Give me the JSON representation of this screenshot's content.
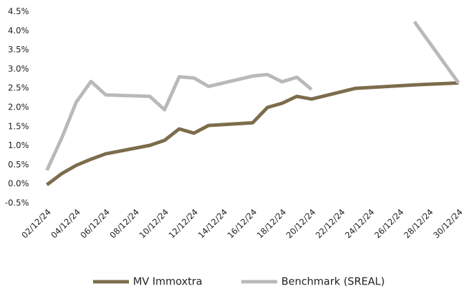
{
  "chart_data": {
    "type": "line",
    "x": [
      "02/12/24",
      "03/12/24",
      "04/12/24",
      "05/12/24",
      "06/12/24",
      "09/12/24",
      "10/12/24",
      "11/12/24",
      "12/12/24",
      "13/12/24",
      "16/12/24",
      "17/12/24",
      "18/12/24",
      "19/12/24",
      "20/12/24",
      "23/12/24",
      "27/12/24",
      "30/12/24"
    ],
    "series": [
      {
        "name": "MV Immoxtra",
        "color": "#7d6c4c",
        "values": [
          -0.02,
          0.27,
          0.49,
          0.65,
          0.79,
          1.01,
          1.14,
          1.44,
          1.33,
          1.53,
          1.6,
          2.0,
          2.11,
          2.29,
          2.22,
          2.5,
          2.59,
          2.64
        ]
      },
      {
        "name": "Benchmark (SREAL)",
        "color": "#b9b9b9",
        "values": [
          0.36,
          1.19,
          2.14,
          2.68,
          2.33,
          2.29,
          1.94,
          2.8,
          2.77,
          2.55,
          2.82,
          2.86,
          2.67,
          2.79,
          2.47,
          null,
          4.24,
          2.64
        ]
      }
    ],
    "xticks": [
      "02/12/24",
      "04/12/24",
      "06/12/24",
      "08/12/24",
      "10/12/24",
      "12/12/24",
      "14/12/24",
      "16/12/24",
      "18/12/24",
      "20/12/24",
      "22/12/24",
      "24/12/24",
      "26/12/24",
      "28/12/24",
      "30/12/24"
    ],
    "ylim": [
      -0.5,
      4.5
    ],
    "yticks": [
      {
        "value": -0.5,
        "label": "-0.5%"
      },
      {
        "value": 0,
        "label": "0.0%"
      },
      {
        "value": 0.5,
        "label": "0.5%"
      },
      {
        "value": 1,
        "label": "1.0%"
      },
      {
        "value": 1.5,
        "label": "1.5%"
      },
      {
        "value": 2,
        "label": "2.0%"
      },
      {
        "value": 2.5,
        "label": "2.5%"
      },
      {
        "value": 3,
        "label": "3.0%"
      },
      {
        "value": 3.5,
        "label": "3.5%"
      },
      {
        "value": 4,
        "label": "4.0%"
      },
      {
        "value": 4.5,
        "label": "4.5%"
      }
    ]
  }
}
